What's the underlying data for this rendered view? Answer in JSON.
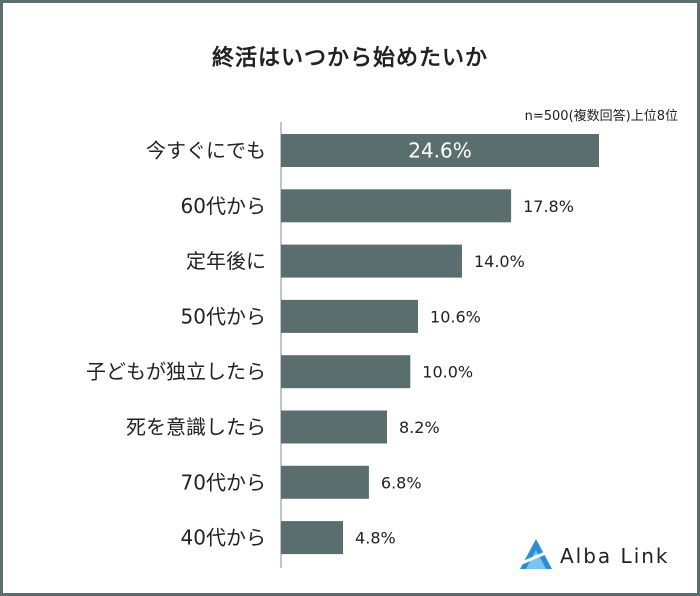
{
  "header": {
    "title": "終活はいつから始めたいか",
    "note": "n=500(複数回答)上位8位"
  },
  "brand": {
    "name": "Alba Link"
  },
  "colors": {
    "bar": "#5a6e6e",
    "axis": "#aab4b4",
    "frame": "#5a6e6e",
    "logo": "#2a8fd6"
  },
  "chart_data": {
    "type": "bar",
    "orientation": "horizontal",
    "title": "終活はいつから始めたいか",
    "categories": [
      "今すぐにでも",
      "60代から",
      "定年後に",
      "50代から",
      "子どもが独立したら",
      "死を意識したら",
      "70代から",
      "40代から"
    ],
    "values": [
      24.6,
      17.8,
      14.0,
      10.6,
      10.0,
      8.2,
      6.8,
      4.8
    ],
    "value_labels": [
      "24.6%",
      "17.8%",
      "14.0%",
      "10.6%",
      "10.0%",
      "8.2%",
      "6.8%",
      "4.8%"
    ],
    "xlim": [
      0,
      24.6
    ]
  }
}
